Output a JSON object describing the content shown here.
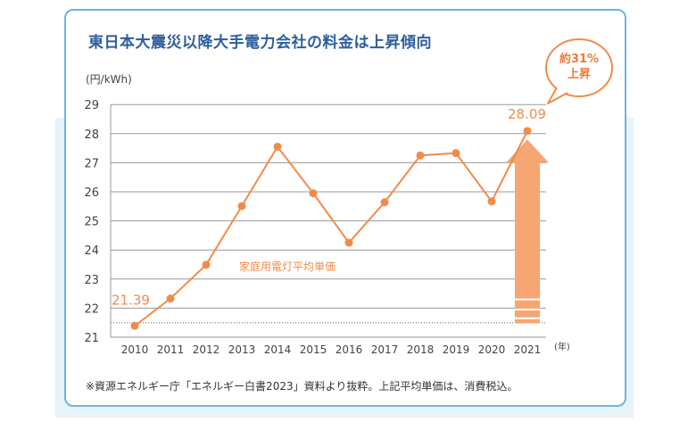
{
  "title": "東日本大震災以降大手電力会社の料金は上昇傾向",
  "unit_label": "(円/kWh)",
  "year_unit": "(年)",
  "footnote": "※資源エネルギー庁「エネルギー白書2023」資料より抜粋。上記平均単価は、消費税込。",
  "callout": {
    "line1": "約31%",
    "line2": "上昇"
  },
  "colors": {
    "line": "#f08c4a",
    "arrow": "#f5a673",
    "title": "#2d5f9a",
    "border": "#6fb4dd",
    "panel": "#e8f2f9"
  },
  "chart_data": {
    "type": "line",
    "title": "東日本大震災以降大手電力会社の料金は上昇傾向",
    "xlabel": "(年)",
    "ylabel": "(円/kWh)",
    "ylim": [
      21,
      29
    ],
    "yticks": [
      21,
      22,
      23,
      24,
      25,
      26,
      27,
      28,
      29
    ],
    "grid": true,
    "categories": [
      "2010",
      "2011",
      "2012",
      "2013",
      "2014",
      "2015",
      "2016",
      "2017",
      "2018",
      "2019",
      "2020",
      "2021"
    ],
    "series": [
      {
        "name": "家庭用電灯平均単価",
        "values": [
          21.39,
          22.33,
          23.49,
          25.51,
          27.55,
          25.95,
          24.25,
          25.64,
          27.25,
          27.33,
          25.67,
          28.09
        ]
      }
    ],
    "annotations": [
      {
        "category": "2010",
        "label": "21.39"
      },
      {
        "category": "2021",
        "label": "28.09"
      }
    ]
  }
}
